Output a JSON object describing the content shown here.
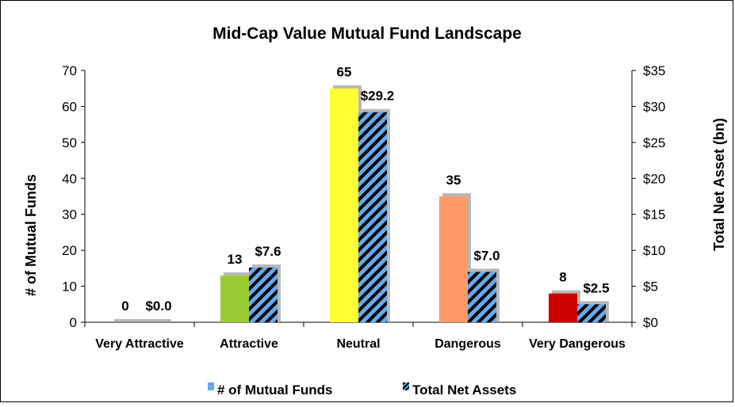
{
  "chart_data": {
    "type": "bar",
    "title": "Mid-Cap Value Mutual Fund Landscape",
    "categories": [
      "Very Attractive",
      "Attractive",
      "Neutral",
      "Dangerous",
      "Very Dangerous"
    ],
    "series": [
      {
        "name": "# of Mutual Funds",
        "axis": "left",
        "values": [
          0,
          13,
          65,
          35,
          8
        ],
        "labels": [
          "0",
          "13",
          "65",
          "35",
          "8"
        ]
      },
      {
        "name": "Total Net Assets",
        "axis": "right",
        "values": [
          0.0,
          7.6,
          29.2,
          7.0,
          2.5
        ],
        "labels": [
          "$0.0",
          "$7.6",
          "$29.2",
          "$7.0",
          "$2.5"
        ]
      }
    ],
    "category_colors": [
      "#a6a6a6",
      "#99cc33",
      "#ffff33",
      "#ff9966",
      "#cc0000"
    ],
    "hatch_colors": [
      "#66aaee",
      "#000000"
    ],
    "ylabel": "# of Mutual Funds",
    "ylim": [
      0,
      70
    ],
    "yticks": [
      "0",
      "10",
      "20",
      "30",
      "40",
      "50",
      "60",
      "70"
    ],
    "y2label": "Total Net Asset (bn)",
    "y2lim": [
      0,
      35
    ],
    "y2ticks": [
      "$0",
      "$5",
      "$10",
      "$15",
      "$20",
      "$25",
      "$30",
      "$35"
    ],
    "grid": false,
    "legend_position": "bottom",
    "legend": [
      "# of Mutual Funds",
      "Total Net Assets"
    ]
  }
}
